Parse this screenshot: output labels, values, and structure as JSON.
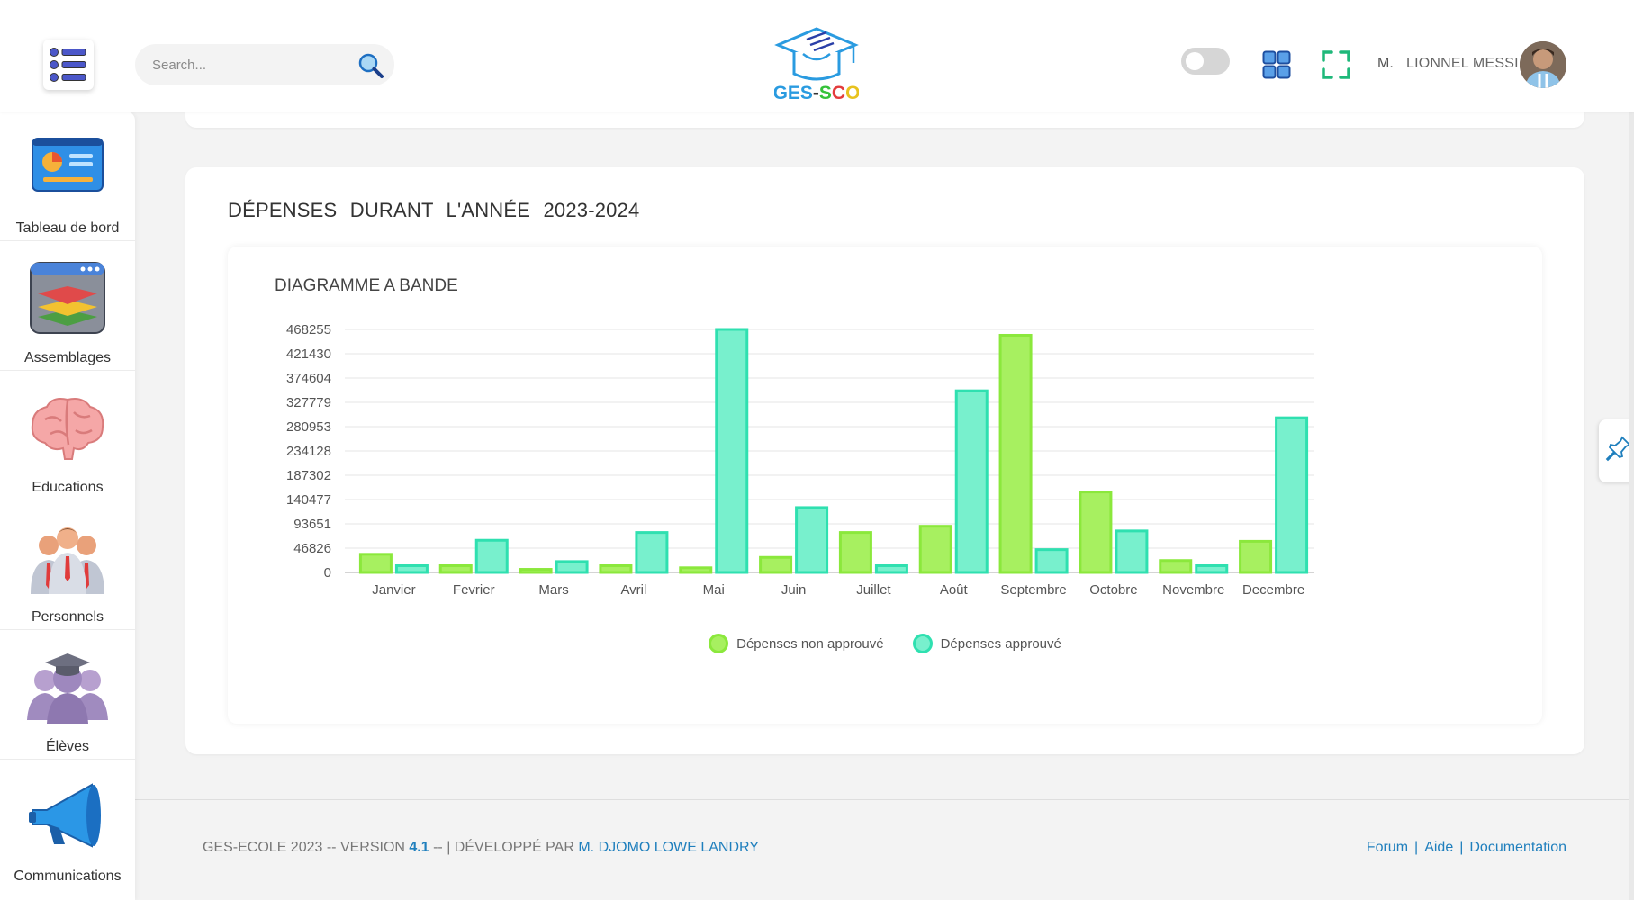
{
  "header": {
    "search_placeholder": "Search...",
    "logo_text": "GES-SCO",
    "user_prefix": "M.",
    "user_name": "LIONNEL MESSI"
  },
  "sidebar": {
    "items": [
      {
        "label": "Tableau de bord",
        "icon": "dashboard-icon"
      },
      {
        "label": "Assemblages",
        "icon": "layers-icon"
      },
      {
        "label": "Educations",
        "icon": "brain-icon"
      },
      {
        "label": "Personnels",
        "icon": "staff-icon"
      },
      {
        "label": "Élèves",
        "icon": "student-icon"
      },
      {
        "label": "Communications",
        "icon": "megaphone-icon"
      }
    ]
  },
  "main": {
    "card_title": "DÉPENSES DURANT L'ANNÉE 2023-2024",
    "chart_title": "DIAGRAMME A BANDE"
  },
  "chart_data": {
    "type": "bar",
    "title": "DIAGRAMME A BANDE",
    "categories": [
      "Janvier",
      "Fevrier",
      "Mars",
      "Avril",
      "Mai",
      "Juin",
      "Juillet",
      "Août",
      "Septembre",
      "Octobre",
      "Novembre",
      "Decembre"
    ],
    "y_ticks": [
      "0",
      "46826",
      "93651",
      "140477",
      "187302",
      "234128",
      "280953",
      "327779",
      "374604",
      "421430",
      "468255"
    ],
    "ylim": [
      0,
      468255
    ],
    "grid": true,
    "legend_position": "bottom",
    "series": [
      {
        "name": "Dépenses non approuvé",
        "color": "#8be83c",
        "fill": "#a7f060",
        "values": [
          35000,
          13000,
          6000,
          13000,
          9000,
          29000,
          77000,
          89000,
          457000,
          155000,
          23000,
          60000
        ]
      },
      {
        "name": "Dépenses approuvé",
        "color": "#2fe0b0",
        "fill": "#78f0cd",
        "values": [
          13000,
          62000,
          21000,
          77000,
          468255,
          125000,
          13000,
          350000,
          44000,
          80000,
          13000,
          298000
        ]
      }
    ]
  },
  "footer": {
    "left_prefix": "GES-ECOLE 2023 -- VERSION ",
    "version": "4.1",
    "left_mid": " -- | DÉVELOPPÉ PAR ",
    "developer": "M. DJOMO LOWE LANDRY",
    "links": [
      "Forum",
      "Aide",
      "Documentation"
    ]
  },
  "colors": {
    "accent_blue": "#1f7fbd",
    "bar_green": "#8be83c",
    "bar_teal": "#2fe0b0"
  }
}
